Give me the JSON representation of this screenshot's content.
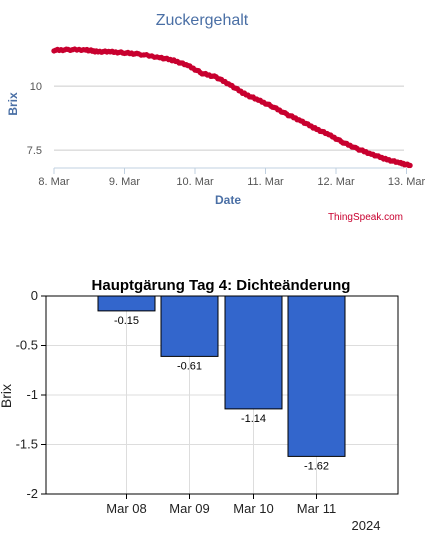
{
  "chart_data": [
    {
      "type": "scatter",
      "title": "Zuckergehalt",
      "xlabel": "Date",
      "ylabel": "Brix",
      "credit": "ThingSpeak.com",
      "x_tick_labels": [
        "8. Mar",
        "9. Mar",
        "10. Mar",
        "11. Mar",
        "12. Mar",
        "13. Mar"
      ],
      "y_ticks": [
        10,
        7.5
      ],
      "y_tick_labels": [
        "10",
        "7.5"
      ],
      "ylim": [
        6.8,
        11.8
      ],
      "grid": "horizontal",
      "color": "#c8002f",
      "series": [
        {
          "x": [
            0.0,
            0.2,
            0.45,
            0.6,
            0.8,
            1.0,
            1.2,
            1.5,
            1.7,
            1.9,
            2.1,
            2.3,
            2.5,
            2.7,
            2.9,
            3.1,
            3.3,
            3.5,
            3.7,
            3.9,
            4.1,
            4.3,
            4.5,
            4.7,
            4.9,
            5.05
          ],
          "y": [
            11.4,
            11.42,
            11.42,
            11.35,
            11.34,
            11.3,
            11.25,
            11.12,
            11.0,
            10.8,
            10.5,
            10.35,
            10.05,
            9.7,
            9.45,
            9.2,
            8.9,
            8.65,
            8.35,
            8.1,
            7.8,
            7.55,
            7.35,
            7.15,
            7.0,
            6.9
          ]
        }
      ]
    },
    {
      "type": "bar",
      "title": "Hauptgärung Tag 4: Dichteänderung",
      "xlabel": "",
      "ylabel": "Brix",
      "year_label": "2024",
      "categories": [
        "Mar 08",
        "Mar 09",
        "Mar 10",
        "Mar 11"
      ],
      "values": [
        -0.15,
        -0.61,
        -1.14,
        -1.62
      ],
      "value_labels": [
        "-0.15",
        "-0.61",
        "-1.14",
        "-1.62"
      ],
      "y_ticks": [
        0,
        -0.5,
        -1,
        -1.5,
        -2
      ],
      "y_tick_labels": [
        "0",
        "-0.5",
        "-1",
        "-1.5",
        "-2"
      ],
      "ylim": [
        -2,
        0
      ],
      "grid": "both",
      "color": "#3366cc"
    }
  ]
}
